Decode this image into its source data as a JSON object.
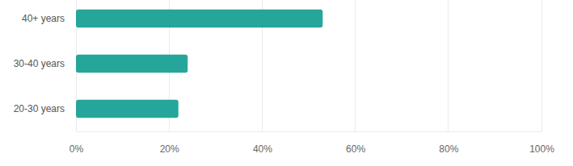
{
  "chart_data": {
    "type": "bar",
    "orientation": "horizontal",
    "categories": [
      "40+ years",
      "30-40 years",
      "20-30 years"
    ],
    "values": [
      53,
      24,
      22
    ],
    "color": "#26a69a",
    "xlim": [
      0,
      100
    ],
    "xticks": [
      {
        "value": 0,
        "label": "0%"
      },
      {
        "value": 20,
        "label": "20%"
      },
      {
        "value": 40,
        "label": "40%"
      },
      {
        "value": 60,
        "label": "60%"
      },
      {
        "value": 80,
        "label": "80%"
      },
      {
        "value": 100,
        "label": "100%"
      }
    ],
    "grid": true
  }
}
